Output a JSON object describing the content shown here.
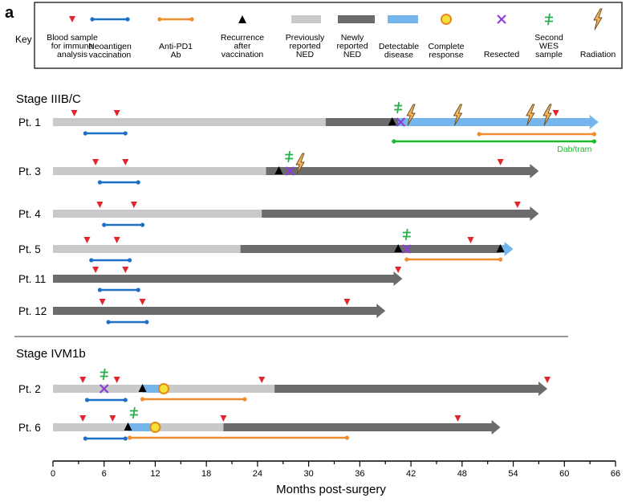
{
  "panel_label": "a",
  "key": {
    "title": "Key",
    "items": [
      {
        "id": "blood",
        "lines": [
          "Blood sample",
          "for immune",
          "analysis"
        ]
      },
      {
        "id": "vaccine",
        "lines": [
          "Neoantigen",
          "vaccination"
        ]
      },
      {
        "id": "pd1",
        "lines": [
          "Anti-PD1",
          "Ab"
        ]
      },
      {
        "id": "recurrence",
        "lines": [
          "Recurrence",
          "after",
          "vaccination"
        ]
      },
      {
        "id": "prev_ned",
        "lines": [
          "Previously",
          "reported",
          "NED"
        ]
      },
      {
        "id": "new_ned",
        "lines": [
          "Newly",
          "reported",
          "NED"
        ]
      },
      {
        "id": "detectable",
        "lines": [
          "Detectable",
          "disease"
        ]
      },
      {
        "id": "complete",
        "lines": [
          "Complete",
          "response"
        ]
      },
      {
        "id": "resected",
        "lines": [
          "Resected"
        ]
      },
      {
        "id": "wes",
        "lines": [
          "Second",
          "WES",
          "sample"
        ]
      },
      {
        "id": "radiation",
        "lines": [
          "Radiation"
        ]
      }
    ]
  },
  "colors": {
    "blood": "#e3262e",
    "vaccine": "#1f6fc6",
    "pd1": "#f08d2c",
    "recurrence": "#000000",
    "prev_ned": "#c9c9c9",
    "new_ned": "#6b6b6b",
    "detectable": "#74b5ec",
    "complete_fill": "#f6e03a",
    "complete_edge": "#e58a1e",
    "resected": "#8b3fd6",
    "wes": "#27b04a",
    "radiation_fill": "#f2b25c",
    "dabtram": "#1fb82b",
    "axis": "#000000"
  },
  "chart_data": {
    "type": "timeline",
    "xlabel": "Months post-surgery",
    "xlim": [
      0,
      66
    ],
    "xticks": [
      0,
      6,
      12,
      18,
      24,
      30,
      36,
      42,
      48,
      54,
      60,
      66
    ],
    "groups": [
      {
        "title": "Stage IIIB/C",
        "patients": [
          {
            "label": "Pt. 1",
            "segments": [
              {
                "type": "prev_ned",
                "from": 0,
                "to": 32
              },
              {
                "type": "new_ned",
                "from": 32,
                "to": 40.5
              },
              {
                "type": "detectable",
                "from": 40.5,
                "to": 64
              }
            ],
            "blood": [
              2.5,
              7.5,
              59
            ],
            "vaccine": [
              3.8,
              8.5
            ],
            "pd1": [
              [
                50,
                63.5
              ]
            ],
            "other": [
              {
                "label": "Dab/tram",
                "from": 40,
                "to": 63.5
              }
            ],
            "recurrence": [
              39.8
            ],
            "resected": [
              40.8
            ],
            "wes": [
              40.5
            ],
            "radiation": [
              42,
              47.5,
              56,
              58
            ],
            "complete": []
          },
          {
            "label": "Pt. 3",
            "segments": [
              {
                "type": "prev_ned",
                "from": 0,
                "to": 25
              },
              {
                "type": "new_ned",
                "from": 25,
                "to": 57
              }
            ],
            "blood": [
              5,
              8.5,
              52.5
            ],
            "vaccine": [
              5.5,
              10
            ],
            "pd1": [],
            "other": [],
            "recurrence": [
              26.5
            ],
            "resected": [
              27.8
            ],
            "wes": [
              27.7
            ],
            "radiation": [
              29
            ],
            "complete": []
          },
          {
            "label": "Pt. 4",
            "segments": [
              {
                "type": "prev_ned",
                "from": 0,
                "to": 24.5
              },
              {
                "type": "new_ned",
                "from": 24.5,
                "to": 57
              }
            ],
            "blood": [
              5.5,
              9.5,
              54.5
            ],
            "vaccine": [
              6,
              10.5
            ],
            "pd1": [],
            "other": [],
            "recurrence": [],
            "resected": [],
            "wes": [],
            "radiation": [],
            "complete": []
          },
          {
            "label": "Pt. 5",
            "segments": [
              {
                "type": "prev_ned",
                "from": 0,
                "to": 22
              },
              {
                "type": "new_ned",
                "from": 22,
                "to": 52.5
              },
              {
                "type": "detectable",
                "from": 52.5,
                "to": 54
              }
            ],
            "blood": [
              4,
              7.5,
              49
            ],
            "vaccine": [
              4.5,
              9
            ],
            "pd1": [
              [
                41.5,
                52.5
              ]
            ],
            "other": [],
            "recurrence": [
              40.5,
              52.5
            ],
            "resected": [
              41.5
            ],
            "wes": [
              41.5
            ],
            "radiation": [],
            "complete": []
          },
          {
            "label": "Pt. 11",
            "segments": [
              {
                "type": "new_ned",
                "from": 0,
                "to": 41
              }
            ],
            "blood": [
              5,
              8.5,
              40.5
            ],
            "vaccine": [
              5.5,
              10
            ],
            "pd1": [],
            "other": [],
            "recurrence": [],
            "resected": [],
            "wes": [],
            "radiation": [],
            "complete": []
          },
          {
            "label": "Pt. 12",
            "segments": [
              {
                "type": "new_ned",
                "from": 0,
                "to": 39
              }
            ],
            "blood": [
              5.8,
              10.5,
              34.5
            ],
            "vaccine": [
              6.5,
              11
            ],
            "pd1": [],
            "other": [],
            "recurrence": [],
            "resected": [],
            "wes": [],
            "radiation": [],
            "complete": []
          }
        ]
      },
      {
        "title": "Stage IVM1b",
        "patients": [
          {
            "label": "Pt. 2",
            "segments": [
              {
                "type": "prev_ned",
                "from": 0,
                "to": 10.5
              },
              {
                "type": "detectable",
                "from": 10.5,
                "to": 13
              },
              {
                "type": "prev_ned",
                "from": 13,
                "to": 26
              },
              {
                "type": "new_ned",
                "from": 26,
                "to": 58
              }
            ],
            "blood": [
              3.5,
              7.5,
              24.5,
              58
            ],
            "vaccine": [
              4,
              8.5
            ],
            "pd1": [
              [
                10.5,
                22.5
              ]
            ],
            "other": [],
            "recurrence": [
              10.5
            ],
            "resected": [
              6
            ],
            "wes": [
              6
            ],
            "radiation": [],
            "complete": [
              13
            ]
          },
          {
            "label": "Pt. 6",
            "segments": [
              {
                "type": "prev_ned",
                "from": 0,
                "to": 8.8
              },
              {
                "type": "detectable",
                "from": 8.8,
                "to": 12
              },
              {
                "type": "prev_ned",
                "from": 12,
                "to": 20
              },
              {
                "type": "new_ned",
                "from": 20,
                "to": 52.5
              }
            ],
            "blood": [
              3.5,
              7,
              20,
              47.5
            ],
            "vaccine": [
              3.8,
              8.5
            ],
            "pd1": [
              [
                9,
                34.5
              ]
            ],
            "other": [],
            "recurrence": [
              8.8
            ],
            "resected": [],
            "wes": [
              9.5
            ],
            "radiation": [],
            "complete": [
              12
            ]
          }
        ]
      }
    ]
  }
}
